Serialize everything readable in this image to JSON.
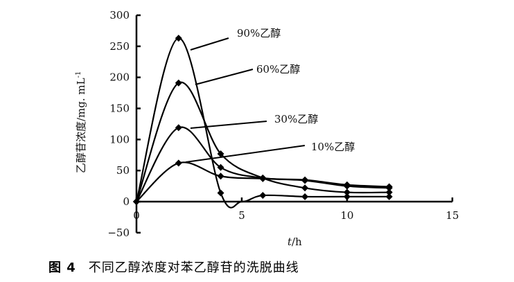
{
  "chart_data": {
    "type": "line",
    "title": "",
    "xlabel": "t/h",
    "ylabel": "乙醇苷浓度/mg. mL⁻¹",
    "xlim": [
      0,
      15
    ],
    "ylim": [
      -50,
      300
    ],
    "xticks": [
      0,
      5,
      10,
      15
    ],
    "yticks": [
      -50,
      0,
      50,
      100,
      150,
      200,
      250,
      300
    ],
    "grid": false,
    "legend_position": "inline leader-line labels",
    "x": [
      0,
      2,
      4,
      6,
      8,
      10,
      12
    ],
    "series": [
      {
        "name": "90%乙醇",
        "x": [
          0,
          2,
          4,
          5,
          6,
          8,
          10,
          12
        ],
        "values": [
          0,
          263,
          14,
          0,
          10,
          8,
          8,
          8
        ]
      },
      {
        "name": "60%乙醇",
        "x": [
          0,
          2,
          4,
          6,
          8,
          10,
          12
        ],
        "values": [
          0,
          191,
          77,
          38,
          22,
          15,
          15
        ]
      },
      {
        "name": "30%乙醇",
        "x": [
          0,
          2,
          4,
          6,
          8,
          10,
          12
        ],
        "values": [
          0,
          119,
          55,
          38,
          35,
          27,
          24
        ]
      },
      {
        "name": "10%乙醇",
        "x": [
          0,
          2,
          4,
          6,
          8,
          10,
          12
        ],
        "values": [
          0,
          62,
          41,
          37,
          34,
          25,
          22
        ]
      }
    ],
    "annotations": [
      {
        "text": "90%乙醇",
        "target_series": "90%乙醇"
      },
      {
        "text": "60%乙醇",
        "target_series": "60%乙醇"
      },
      {
        "text": "30%乙醇",
        "target_series": "30%乙醇"
      },
      {
        "text": "10%乙醇",
        "target_series": "10%乙醇"
      }
    ]
  },
  "axes": {
    "x_title_italic": "t",
    "x_title_rest": "/h",
    "y_title_main": "乙醇苷浓度/mg. mL",
    "y_title_sup": "-1"
  },
  "labels": {
    "s90": "90%乙醇",
    "s60": "60%乙醇",
    "s30": "30%乙醇",
    "s10": "10%乙醇"
  },
  "caption": {
    "figure_number": "图 4",
    "text": "不同乙醇浓度对苯乙醇苷的洗脱曲线"
  }
}
